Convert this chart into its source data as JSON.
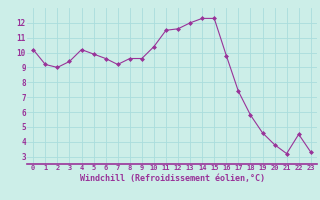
{
  "x": [
    0,
    1,
    2,
    3,
    4,
    5,
    6,
    7,
    8,
    9,
    10,
    11,
    12,
    13,
    14,
    15,
    16,
    17,
    18,
    19,
    20,
    21,
    22,
    23
  ],
  "y": [
    10.2,
    9.2,
    9.0,
    9.4,
    10.2,
    9.9,
    9.6,
    9.2,
    9.6,
    9.6,
    10.4,
    11.5,
    11.6,
    12.0,
    12.3,
    12.3,
    9.8,
    7.4,
    5.8,
    4.6,
    3.8,
    3.2,
    4.5,
    3.3
  ],
  "line_color": "#993399",
  "marker_color": "#993399",
  "bg_color": "#cceee8",
  "grid_color": "#aadddd",
  "xlabel": "Windchill (Refroidissement éolien,°C)",
  "xlabel_color": "#993399",
  "tick_color": "#993399",
  "ylim": [
    2.5,
    13.0
  ],
  "xlim": [
    -0.5,
    23.5
  ],
  "yticks": [
    3,
    4,
    5,
    6,
    7,
    8,
    9,
    10,
    11,
    12
  ],
  "xticks": [
    0,
    1,
    2,
    3,
    4,
    5,
    6,
    7,
    8,
    9,
    10,
    11,
    12,
    13,
    14,
    15,
    16,
    17,
    18,
    19,
    20,
    21,
    22,
    23
  ]
}
